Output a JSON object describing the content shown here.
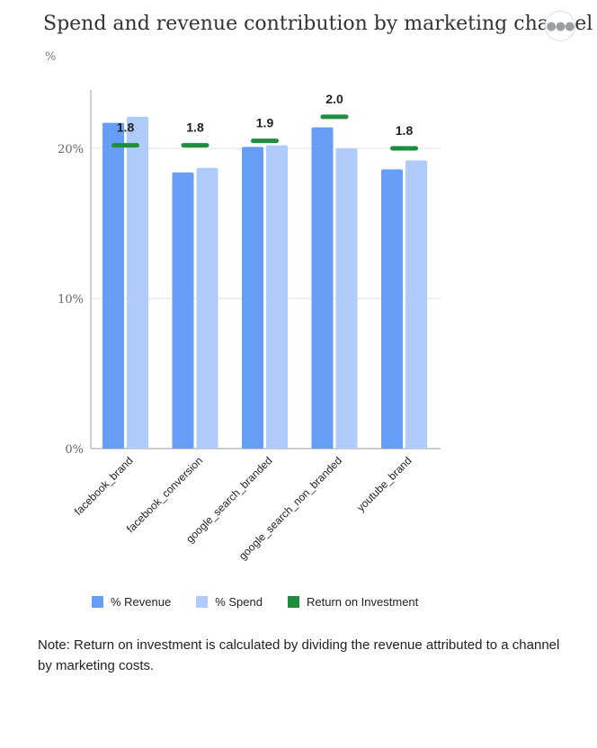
{
  "header": {
    "title": "Spend and revenue contribution by marketing channel",
    "unit": "%",
    "more_icon": "more-horiz-icon"
  },
  "colors": {
    "revenue": "#669df6",
    "spend": "#aecbfa",
    "roi": "#1e8e3e",
    "grid": "#e0e0e0",
    "axis": "#9e9e9e"
  },
  "chart_data": {
    "type": "bar",
    "title": "Spend and revenue contribution by marketing channel",
    "ylabel": "%",
    "xlabel": "",
    "ylim": [
      0,
      24
    ],
    "yticks": [
      0,
      10,
      20
    ],
    "ytick_labels": [
      "0%",
      "10%",
      "20%"
    ],
    "categories": [
      "facebook_brand",
      "facebook_conversion",
      "google_search_branded",
      "google_search_non_branded",
      "youtube_brand"
    ],
    "series": [
      {
        "name": "% Revenue",
        "values": [
          21.7,
          18.4,
          20.1,
          21.4,
          18.6
        ]
      },
      {
        "name": "% Spend",
        "values": [
          22.1,
          18.7,
          20.2,
          20.0,
          19.2
        ]
      }
    ],
    "roi": {
      "name": "Return on Investment",
      "values": [
        1.8,
        1.8,
        1.9,
        2.0,
        1.8
      ],
      "labels": [
        "1.8",
        "1.8",
        "1.9",
        "2.0",
        "1.8"
      ],
      "marker_level_pct": [
        20.2,
        20.2,
        20.5,
        22.1,
        20.0
      ]
    },
    "grid": true,
    "legend": "bottom"
  },
  "legend": {
    "items": [
      {
        "label": "% Revenue"
      },
      {
        "label": "% Spend"
      },
      {
        "label": "Return on Investment"
      }
    ]
  },
  "note": "Note: Return on investment is calculated by dividing the revenue attributed to a channel by marketing costs."
}
